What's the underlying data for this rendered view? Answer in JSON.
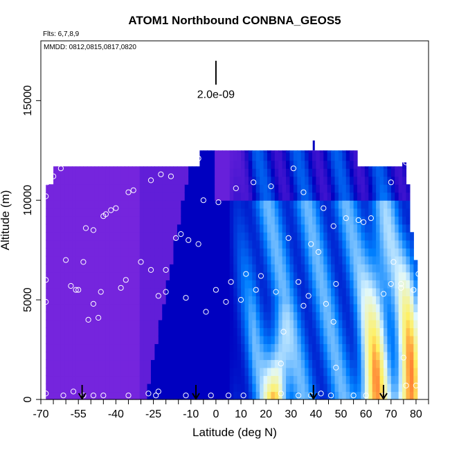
{
  "chart_data": {
    "type": "heatmap",
    "title": "ATOM1 Northbound CONBNA_GEOS5",
    "subtitle_flights": "Flts: 6,7,8,9",
    "subtitle_dates": "MMDD: 0812,0815,0817,0820",
    "xlabel": "Latitude (deg N)",
    "ylabel": "Altitude (m)",
    "xlim": [
      -70,
      85
    ],
    "ylim": [
      0,
      18000
    ],
    "xticks": [
      -70,
      -55,
      -40,
      -25,
      -10,
      0,
      10,
      20,
      30,
      40,
      50,
      60,
      70,
      80
    ],
    "xtick_labels": [
      "-70",
      "-55",
      "-40",
      "-25",
      "-10",
      "0",
      "10",
      "20",
      "30",
      "40",
      "50",
      "60",
      "70",
      "80"
    ],
    "xticks_minor": [
      -65,
      -60,
      -50,
      -45,
      -35,
      -30,
      -20,
      -15,
      -5,
      5,
      15,
      25,
      35,
      45,
      55,
      65,
      75,
      85
    ],
    "yticks": [
      0,
      5000,
      10000,
      15000
    ],
    "ytick_labels": [
      "0",
      "5000",
      "10000",
      "15000"
    ],
    "scale_bar": {
      "label": "2.0e-09",
      "x": 0,
      "y_top": 17000,
      "y_bottom": 15800
    },
    "arrows_lat": [
      -53.5,
      -8,
      39,
      67
    ],
    "colormap": [
      "#8a2be2",
      "#0000c0",
      "#0080ff",
      "#e0f8ff",
      "#fff060",
      "#ff0000"
    ],
    "observation_points": [
      [
        -68,
        10200
      ],
      [
        -67.5,
        10900
      ],
      [
        -66.5,
        11000
      ],
      [
        -65,
        11200
      ],
      [
        -62,
        11600
      ],
      [
        -68,
        6000
      ],
      [
        -58,
        5700
      ],
      [
        -56,
        5500
      ],
      [
        -55,
        5500
      ],
      [
        -53,
        6900
      ],
      [
        -60,
        7000
      ],
      [
        -52,
        8600
      ],
      [
        -49,
        8500
      ],
      [
        -45,
        9200
      ],
      [
        -44,
        9300
      ],
      [
        -42,
        9500
      ],
      [
        -40,
        9600
      ],
      [
        -35,
        10400
      ],
      [
        -33,
        10500
      ],
      [
        -26,
        11000
      ],
      [
        -18,
        11200
      ],
      [
        -22,
        11300
      ],
      [
        -7,
        12100
      ],
      [
        -46,
        5400
      ],
      [
        -49,
        4800
      ],
      [
        -51,
        4000
      ],
      [
        -47,
        4100
      ],
      [
        -38,
        5600
      ],
      [
        -36,
        6000
      ],
      [
        -30,
        6900
      ],
      [
        -26,
        6500
      ],
      [
        -23,
        5200
      ],
      [
        -20,
        6500
      ],
      [
        -16,
        8100
      ],
      [
        -14,
        8300
      ],
      [
        -11,
        8000
      ],
      [
        -7,
        7800
      ],
      [
        -5,
        10000
      ],
      [
        1,
        9900
      ],
      [
        8,
        10600
      ],
      [
        15,
        10900
      ],
      [
        22,
        10700
      ],
      [
        31,
        11600
      ],
      [
        35,
        10400
      ],
      [
        43,
        9600
      ],
      [
        47,
        8700
      ],
      [
        52,
        9100
      ],
      [
        57,
        9000
      ],
      [
        59,
        8900
      ],
      [
        62,
        9100
      ],
      [
        70,
        10900
      ],
      [
        76,
        11900
      ],
      [
        -68,
        4900
      ],
      [
        -20,
        5400
      ],
      [
        -12,
        5100
      ],
      [
        -4,
        4400
      ],
      [
        0,
        5500
      ],
      [
        4,
        4900
      ],
      [
        6,
        5900
      ],
      [
        10,
        5000
      ],
      [
        12,
        6300
      ],
      [
        16,
        5500
      ],
      [
        18,
        6200
      ],
      [
        24,
        5400
      ],
      [
        29,
        8100
      ],
      [
        33,
        5900
      ],
      [
        35,
        4700
      ],
      [
        37,
        5200
      ],
      [
        38,
        7800
      ],
      [
        41,
        7400
      ],
      [
        44,
        4800
      ],
      [
        47,
        3900
      ],
      [
        48,
        5800
      ],
      [
        48,
        1600
      ],
      [
        27,
        3400
      ],
      [
        26,
        1800
      ],
      [
        67,
        5300
      ],
      [
        70,
        5800
      ],
      [
        71,
        6900
      ],
      [
        74,
        5800
      ],
      [
        74,
        5600
      ],
      [
        75,
        2100
      ],
      [
        76,
        700
      ],
      [
        80,
        700
      ],
      [
        81,
        6300
      ],
      [
        79,
        5500
      ],
      [
        -68,
        300
      ],
      [
        -61,
        200
      ],
      [
        -57,
        400
      ],
      [
        -53,
        200
      ],
      [
        -49,
        200
      ],
      [
        -45,
        200
      ],
      [
        -35,
        200
      ],
      [
        -27,
        300
      ],
      [
        -24,
        200
      ],
      [
        -23,
        400
      ],
      [
        -12,
        200
      ],
      [
        -2,
        200
      ],
      [
        5,
        200
      ],
      [
        11,
        200
      ],
      [
        26,
        300
      ],
      [
        33,
        200
      ],
      [
        38,
        200
      ],
      [
        42,
        300
      ],
      [
        46,
        200
      ],
      [
        55,
        200
      ],
      [
        60,
        200
      ],
      [
        67,
        200
      ]
    ]
  }
}
